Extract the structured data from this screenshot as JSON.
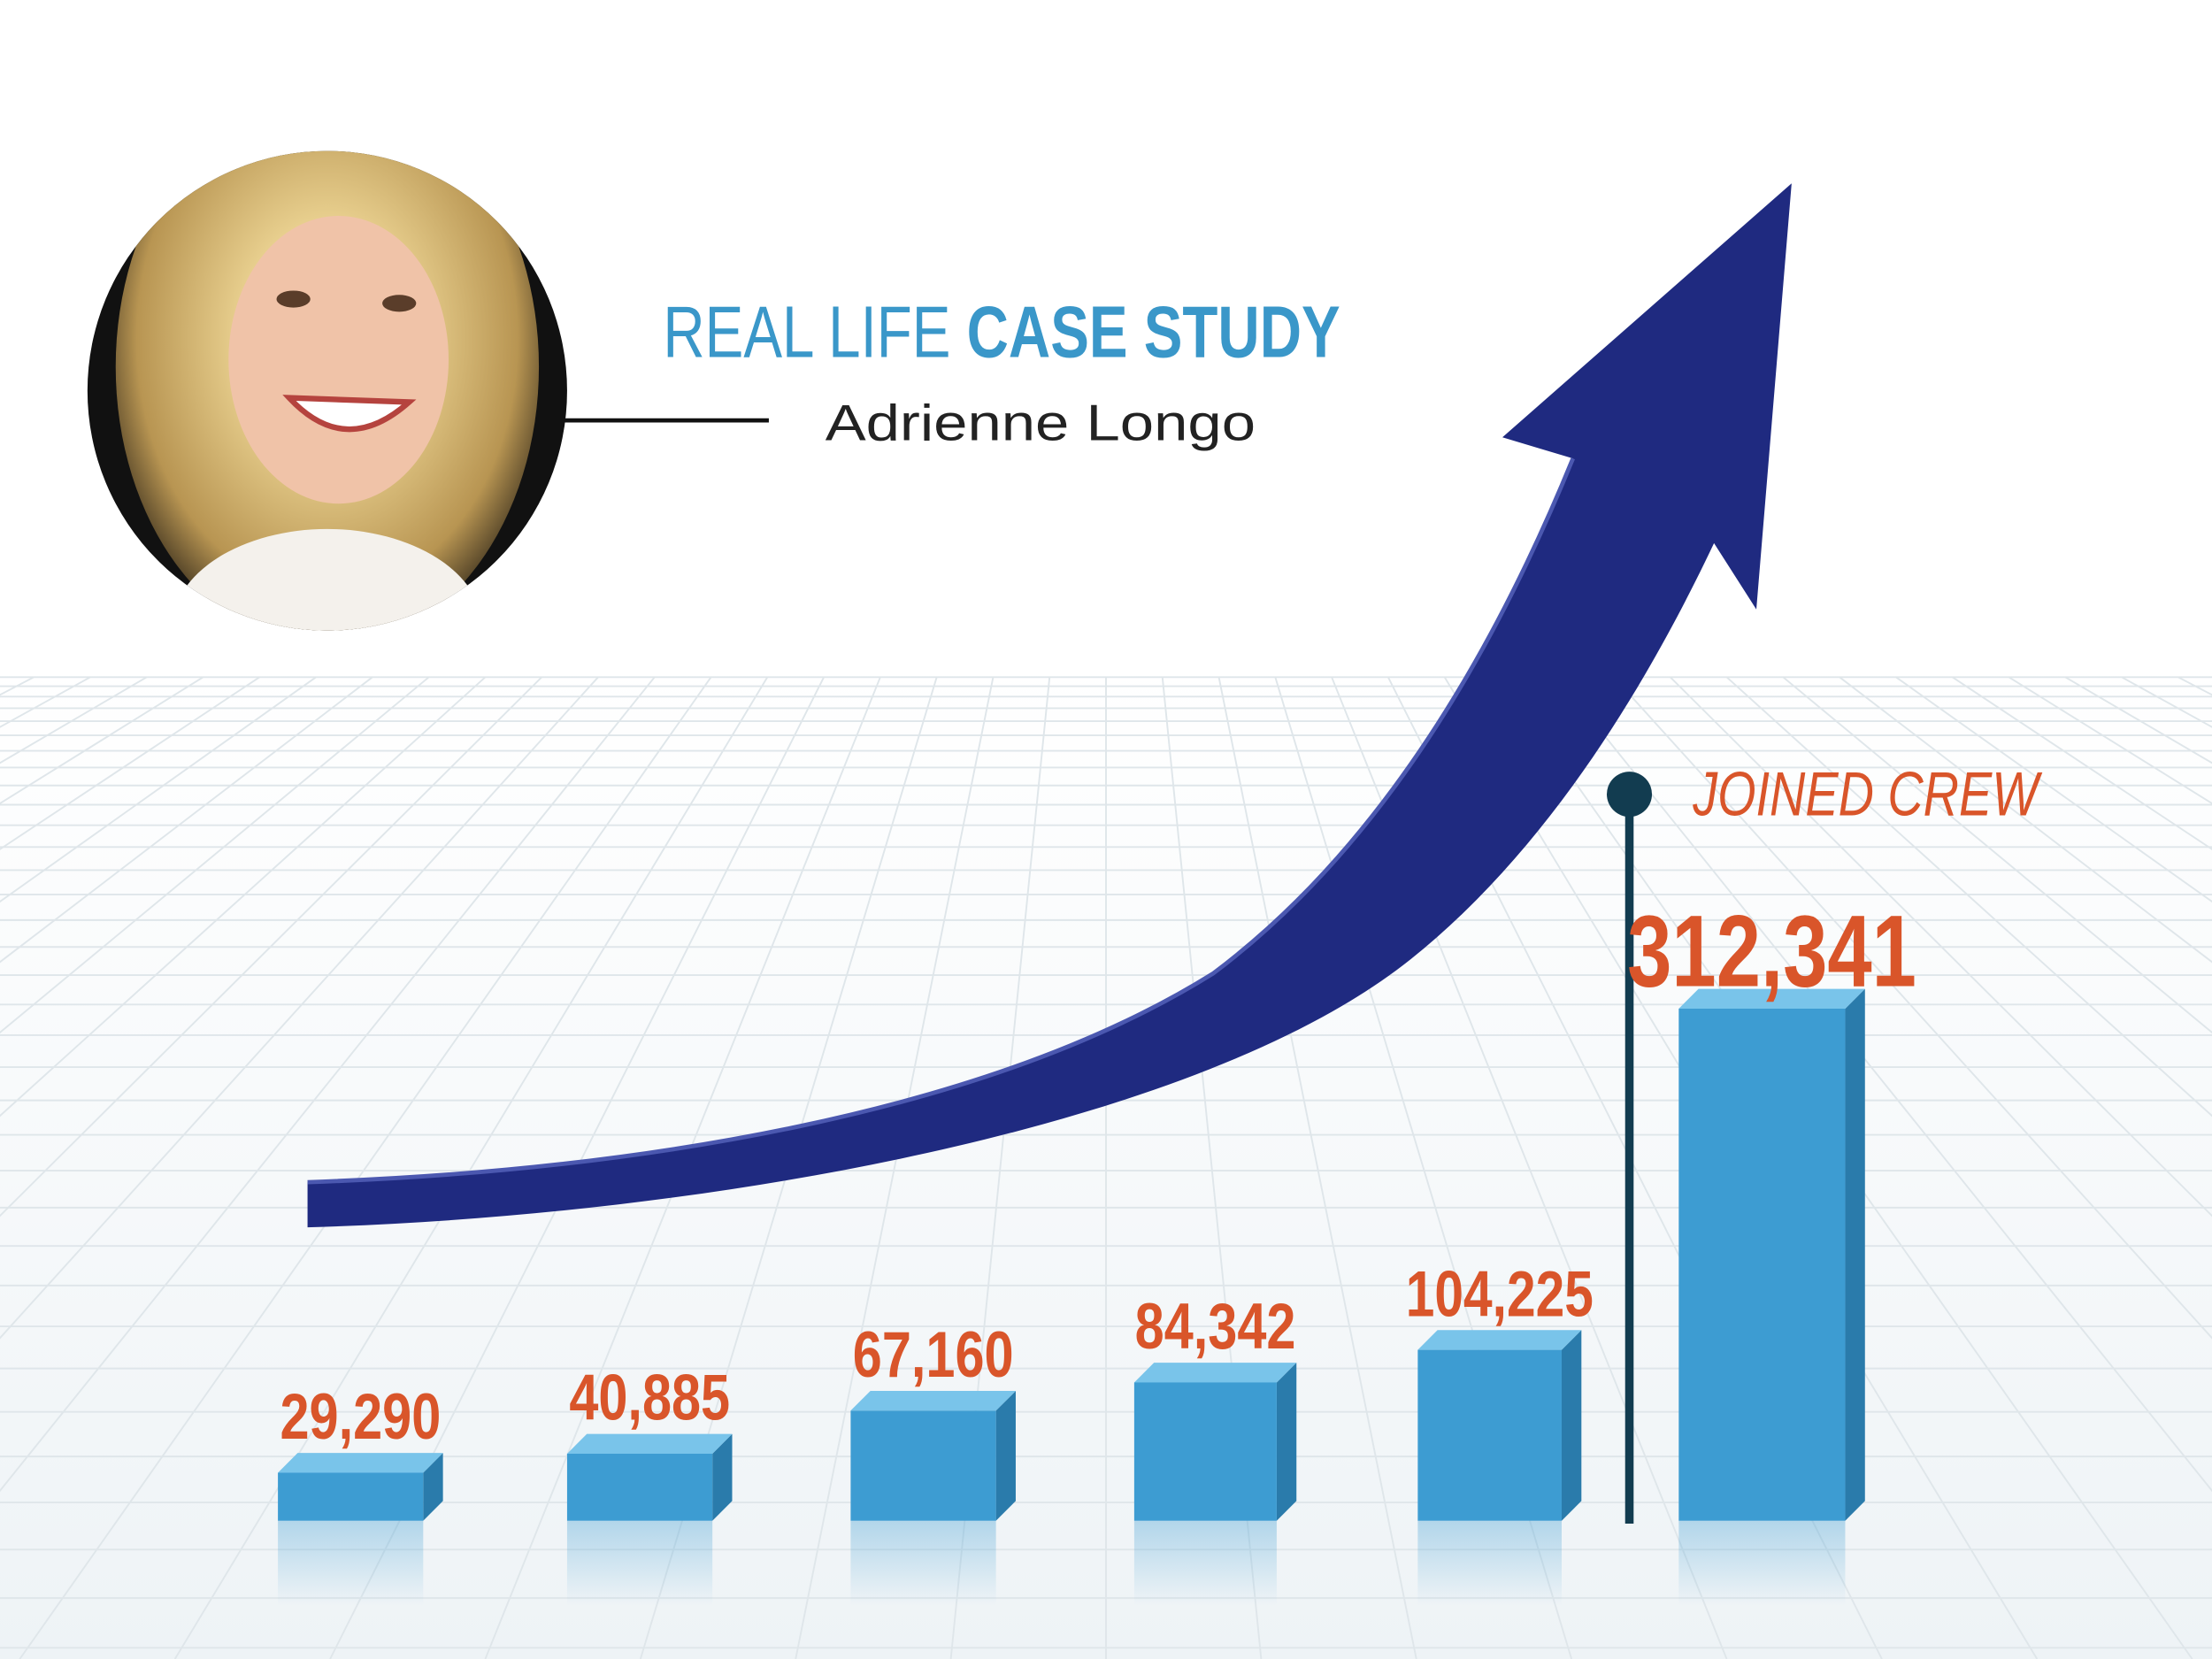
{
  "chart_data": {
    "type": "bar",
    "title_parts": [
      "REAL LIFE",
      "CASE STUDY"
    ],
    "subtitle": "Adrienne Longo",
    "annotation": "JOINED CREW",
    "categories": [
      null,
      null,
      null,
      null,
      null,
      null
    ],
    "values": [
      29290,
      40885,
      67160,
      84342,
      104225,
      312341
    ],
    "value_labels": [
      "29,290",
      "40,885",
      "67,160",
      "84,342",
      "104,225",
      "312,341"
    ],
    "color": "#3d9cd2",
    "label_color": "#d9552a"
  }
}
